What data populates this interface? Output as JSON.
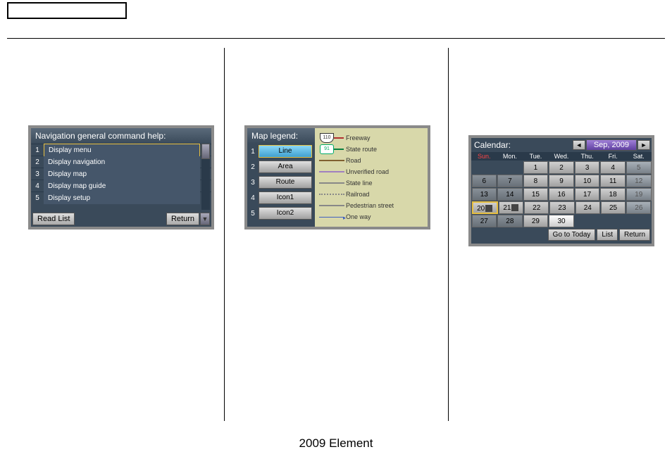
{
  "footer": "2009  Element",
  "panel1": {
    "title": "Navigation general command help:",
    "items": [
      {
        "num": "1",
        "label": "Display menu",
        "selected": true
      },
      {
        "num": "2",
        "label": "Display navigation",
        "selected": false
      },
      {
        "num": "3",
        "label": "Display map",
        "selected": false
      },
      {
        "num": "4",
        "label": "Display map guide",
        "selected": false
      },
      {
        "num": "5",
        "label": "Display setup",
        "selected": false
      }
    ],
    "read_list": "Read List",
    "return": "Return"
  },
  "panel2": {
    "title": "Map legend:",
    "buttons": [
      {
        "num": "1",
        "label": "Line",
        "selected": true
      },
      {
        "num": "2",
        "label": "Area",
        "selected": false
      },
      {
        "num": "3",
        "label": "Route",
        "selected": false
      },
      {
        "num": "4",
        "label": "Icon1",
        "selected": false
      },
      {
        "num": "5",
        "label": "Icon2",
        "selected": false
      }
    ],
    "legend": [
      {
        "type": "shield-us",
        "text": "110",
        "label": "Freeway",
        "color": "#b03030"
      },
      {
        "type": "shield-state",
        "text": "91",
        "label": "State route",
        "color": "#0a8040"
      },
      {
        "type": "line",
        "label": "Road",
        "color": "#806030"
      },
      {
        "type": "line",
        "label": "Unverified road",
        "color": "#a080c0"
      },
      {
        "type": "line",
        "label": "State line",
        "color": "#888888"
      },
      {
        "type": "dotted",
        "label": "Railroad",
        "color": "#888888"
      },
      {
        "type": "line",
        "label": "Pedestrian street",
        "color": "#888888"
      },
      {
        "type": "arrow",
        "label": "One way",
        "color": "#4060c0"
      }
    ]
  },
  "panel3": {
    "label": "Calendar:",
    "month": "Sep, 2009",
    "dayheaders": [
      "Sun.",
      "Mon.",
      "Tue.",
      "Wed.",
      "Thu.",
      "Fri.",
      "Sat."
    ],
    "weeks": [
      [
        {
          "n": "",
          "cls": "empty"
        },
        {
          "n": "",
          "cls": "empty"
        },
        {
          "n": "1",
          "cls": ""
        },
        {
          "n": "2",
          "cls": ""
        },
        {
          "n": "3",
          "cls": ""
        },
        {
          "n": "4",
          "cls": ""
        },
        {
          "n": "5",
          "cls": "grey"
        }
      ],
      [
        {
          "n": "6",
          "cls": "past"
        },
        {
          "n": "7",
          "cls": "past"
        },
        {
          "n": "8",
          "cls": ""
        },
        {
          "n": "9",
          "cls": ""
        },
        {
          "n": "10",
          "cls": ""
        },
        {
          "n": "11",
          "cls": ""
        },
        {
          "n": "12",
          "cls": "grey"
        }
      ],
      [
        {
          "n": "13",
          "cls": "past"
        },
        {
          "n": "14",
          "cls": "past"
        },
        {
          "n": "15",
          "cls": ""
        },
        {
          "n": "16",
          "cls": ""
        },
        {
          "n": "17",
          "cls": ""
        },
        {
          "n": "18",
          "cls": ""
        },
        {
          "n": "19",
          "cls": "grey"
        }
      ],
      [
        {
          "n": "20",
          "cls": "today",
          "icon": true
        },
        {
          "n": "21",
          "cls": "",
          "icon": true
        },
        {
          "n": "22",
          "cls": ""
        },
        {
          "n": "23",
          "cls": ""
        },
        {
          "n": "24",
          "cls": ""
        },
        {
          "n": "25",
          "cls": ""
        },
        {
          "n": "26",
          "cls": "grey"
        }
      ],
      [
        {
          "n": "27",
          "cls": "past"
        },
        {
          "n": "28",
          "cls": "past"
        },
        {
          "n": "29",
          "cls": ""
        },
        {
          "n": "30",
          "cls": "hl"
        },
        {
          "n": "",
          "cls": "empty"
        },
        {
          "n": "",
          "cls": "empty"
        },
        {
          "n": "",
          "cls": "empty"
        }
      ]
    ],
    "go_today": "Go to Today",
    "list": "List",
    "return": "Return"
  }
}
